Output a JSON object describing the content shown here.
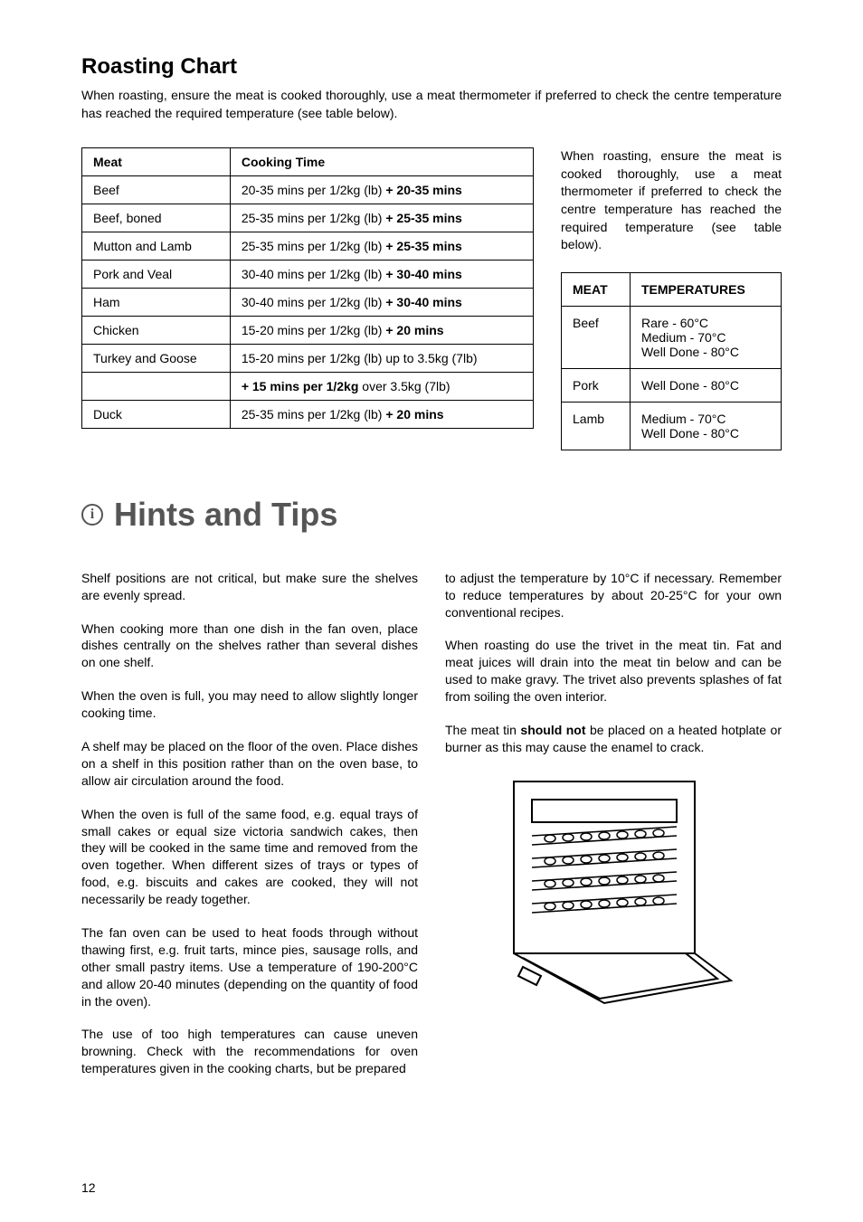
{
  "page_number": "12",
  "roasting": {
    "title": "Roasting Chart",
    "intro": "When roasting, ensure the meat is cooked thoroughly, use a meat thermometer if preferred to check the centre temperature has reached the required temperature (see table below).",
    "table": {
      "headers": [
        "Meat",
        "Cooking Time"
      ],
      "rows": [
        {
          "meat": "Beef",
          "time_prefix": "20-35 mins per 1/2kg (lb) ",
          "time_bold": "+ 20-35 mins",
          "time_suffix": ""
        },
        {
          "meat": "Beef, boned",
          "time_prefix": "25-35 mins per 1/2kg (lb) ",
          "time_bold": "+ 25-35 mins",
          "time_suffix": ""
        },
        {
          "meat": "Mutton and Lamb",
          "time_prefix": "25-35 mins per 1/2kg (lb) ",
          "time_bold": "+ 25-35 mins",
          "time_suffix": ""
        },
        {
          "meat": "Pork and Veal",
          "time_prefix": "30-40 mins per 1/2kg (lb) ",
          "time_bold": "+ 30-40 mins",
          "time_suffix": ""
        },
        {
          "meat": "Ham",
          "time_prefix": "30-40 mins per 1/2kg (lb) ",
          "time_bold": "+ 30-40 mins",
          "time_suffix": ""
        },
        {
          "meat": "Chicken",
          "time_prefix": "15-20 mins per 1/2kg (lb) ",
          "time_bold": "+ 20 mins",
          "time_suffix": ""
        },
        {
          "meat": "Turkey and Goose",
          "time_prefix": "15-20 mins per 1/2kg (lb) up to 3.5kg (7lb)",
          "time_bold": "",
          "time_suffix": ""
        },
        {
          "meat": "",
          "time_prefix": "",
          "time_bold": "+ 15 mins per 1/2kg",
          "time_suffix": " over 3.5kg (7lb)"
        },
        {
          "meat": "Duck",
          "time_prefix": "25-35 mins per 1/2kg (lb) ",
          "time_bold": "+ 20 mins",
          "time_suffix": ""
        }
      ]
    },
    "side_text": "When roasting, ensure the meat is cooked thoroughly, use a meat thermometer if preferred to check the centre temperature has reached the required temperature (see table below).",
    "temp_table": {
      "headers": [
        "MEAT",
        "TEMPERATURES"
      ],
      "rows": [
        {
          "meat": "Beef",
          "temps": "Rare - 60°C\nMedium - 70°C\nWell Done - 80°C"
        },
        {
          "meat": "Pork",
          "temps": "Well Done - 80°C"
        },
        {
          "meat": "Lamb",
          "temps": "Medium - 70°C\nWell Done - 80°C"
        }
      ]
    }
  },
  "hints": {
    "title": "Hints and Tips",
    "left_paragraphs": [
      "Shelf positions are not critical, but make sure the shelves are evenly spread.",
      "When cooking more than one dish in the fan oven, place dishes centrally on the shelves rather than several dishes on one shelf.",
      "When the oven is full, you may need to allow slightly longer cooking time.",
      "A shelf may be placed on the floor of the oven. Place dishes on a shelf in this position rather than on the oven base, to allow air circulation around the food.",
      "When the oven is full of the same food, e.g. equal trays of small cakes or equal size victoria sandwich cakes, then they will be cooked in the same time and removed from the oven together. When different sizes of trays or types of food, e.g. biscuits and cakes are cooked, they will not necessarily be ready together.",
      "The fan oven can be used to heat foods through without thawing first, e.g. fruit tarts, mince pies, sausage rolls, and other small pastry items. Use a temperature of 190-200°C and allow 20-40 minutes (depending on the quantity of food in the oven).",
      "The use of too high temperatures can cause uneven browning. Check with the recommendations for oven temperatures given in the cooking charts, but be prepared"
    ],
    "right_paragraphs": [
      "to adjust the temperature by 10°C if necessary. Remember to reduce temperatures by about 20-25°C for your own conventional recipes.",
      "When roasting do use the trivet in the meat tin. Fat and meat juices will drain into the meat tin below and can be used to make gravy. The trivet also prevents splashes of fat from soiling the oven interior."
    ],
    "right_special": {
      "prefix": "The meat tin ",
      "bold": "should not",
      "suffix": " be placed on a heated hotplate or burner as this may cause the enamel to crack."
    }
  }
}
